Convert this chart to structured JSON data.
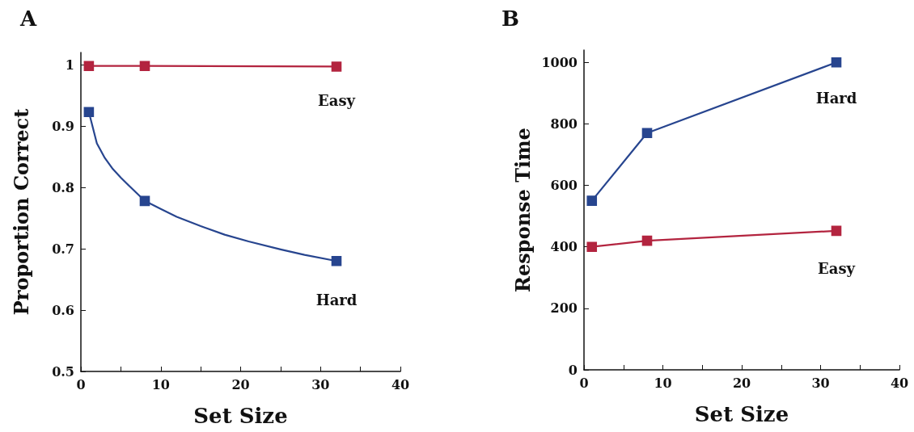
{
  "chart_data": [
    {
      "type": "line",
      "title": "A",
      "xlabel": "Set Size",
      "ylabel": "Proportion Correct",
      "xlim": [
        0,
        40
      ],
      "xticks": [
        0,
        {
          "value": 5,
          "label": null
        },
        10,
        {
          "value": 15,
          "label": null
        },
        20,
        {
          "value": 25,
          "label": null
        },
        30,
        {
          "value": 35,
          "label": null
        },
        40
      ],
      "ylim": [
        0.5,
        1.02
      ],
      "yticks": [
        0.5,
        0.6,
        0.7,
        0.8,
        0.9,
        1
      ],
      "grid": false,
      "legend": false,
      "marker": "square",
      "series": [
        {
          "name": "Easy",
          "color": "#b3243f",
          "x": [
            1,
            8,
            32
          ],
          "values": [
            0.998,
            0.998,
            0.997
          ]
        },
        {
          "type": "scatter",
          "name": "Hard",
          "color": "#27458f",
          "x": [
            1,
            8,
            32
          ],
          "values": [
            0.923,
            0.778,
            0.68
          ]
        },
        {
          "type": "line",
          "color": "#27458f",
          "marker": "none",
          "x": [
            1,
            2,
            3,
            4,
            5,
            6,
            8,
            10,
            12,
            15,
            18,
            21,
            25,
            28,
            32
          ],
          "values": [
            0.923,
            0.872,
            0.848,
            0.83,
            0.816,
            0.803,
            0.778,
            0.765,
            0.752,
            0.737,
            0.723,
            0.712,
            0.699,
            0.69,
            0.68
          ]
        }
      ]
    },
    {
      "type": "line",
      "title": "B",
      "xlabel": "Set Size",
      "ylabel": "Response Time",
      "xlim": [
        0,
        40
      ],
      "xticks": [
        0,
        {
          "value": 5,
          "label": null
        },
        10,
        {
          "value": 15,
          "label": null
        },
        20,
        {
          "value": 25,
          "label": null
        },
        30,
        {
          "value": 35,
          "label": null
        },
        40
      ],
      "ylim": [
        0,
        1040
      ],
      "yticks": [
        0,
        200,
        400,
        600,
        800,
        1000
      ],
      "grid": false,
      "legend": false,
      "marker": "square",
      "series": [
        {
          "name": "Hard",
          "color": "#27458f",
          "x": [
            1,
            8,
            32
          ],
          "values": [
            550,
            770,
            1000
          ]
        },
        {
          "name": "Easy",
          "color": "#b3243f",
          "x": [
            1,
            8,
            32
          ],
          "values": [
            400,
            420,
            452
          ]
        }
      ]
    }
  ]
}
